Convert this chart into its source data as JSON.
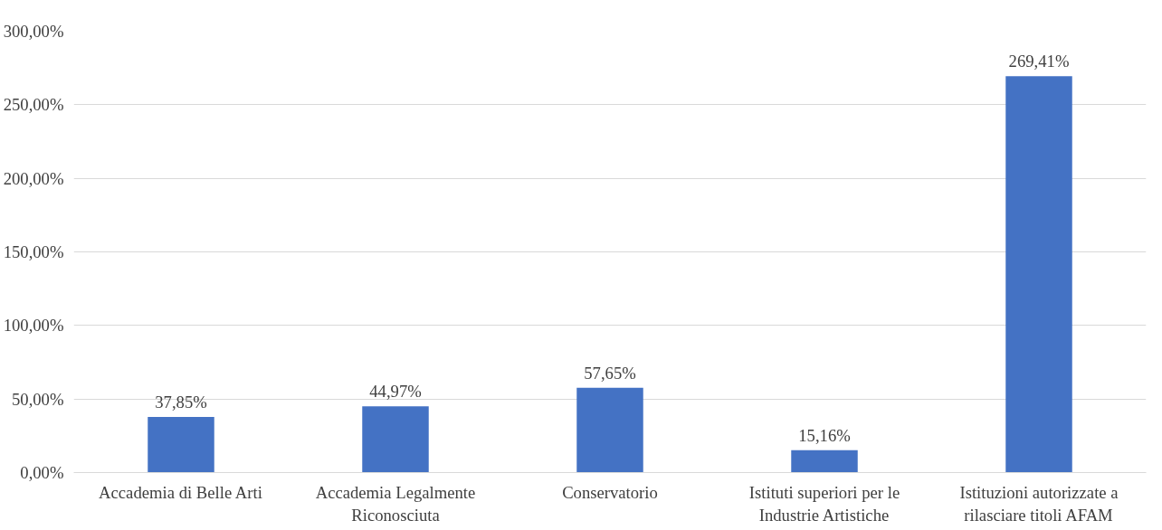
{
  "chart_data": {
    "type": "bar",
    "categories": [
      "Accademia di Belle Arti",
      "Accademia Legalmente Riconosciuta",
      "Conservatorio",
      "Istituti superiori per le Industrie Artistiche",
      "Istituzioni autorizzate a rilasciare titoli AFAM"
    ],
    "values": [
      37.85,
      44.97,
      57.65,
      15.16,
      269.41
    ],
    "value_labels": [
      "37,85%",
      "44,97%",
      "57,65%",
      "15,16%",
      "269,41%"
    ],
    "color": "#4472c4",
    "ylim": [
      0,
      300
    ],
    "yticks": [
      {
        "value": 0,
        "label": "0,00%"
      },
      {
        "value": 50,
        "label": "50,00%"
      },
      {
        "value": 100,
        "label": "100,00%"
      },
      {
        "value": 150,
        "label": "150,00%"
      },
      {
        "value": 200,
        "label": "200,00%"
      },
      {
        "value": 250,
        "label": "250,00%"
      },
      {
        "value": 300,
        "label": "300,00%"
      }
    ],
    "grid": "y"
  }
}
